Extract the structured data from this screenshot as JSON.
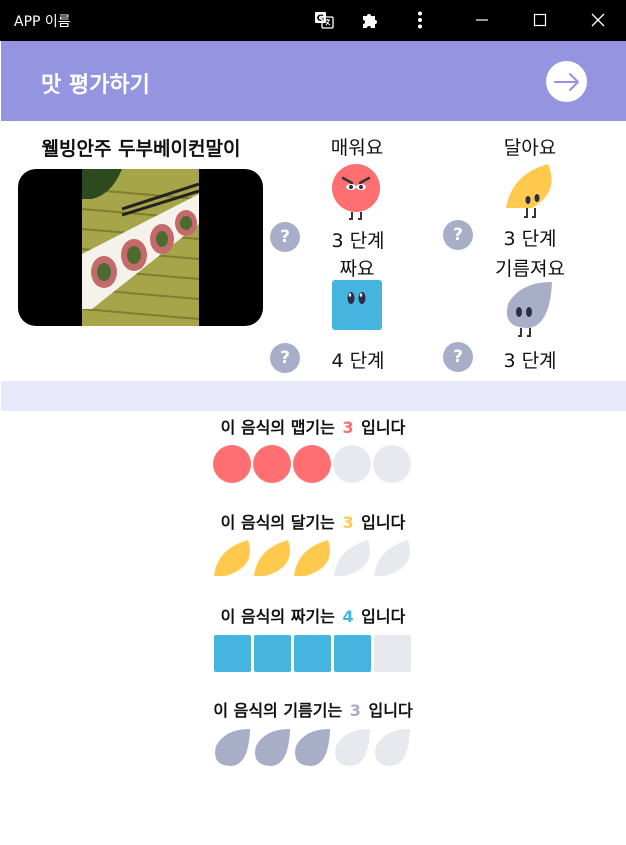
{
  "window": {
    "title": "APP 이름"
  },
  "header": {
    "title": "맛 평가하기"
  },
  "food": {
    "name": "웰빙안주 두부베이컨말이"
  },
  "attributes": [
    {
      "key": "spicy",
      "label": "매워요",
      "level_text": "3 단계",
      "color": "#ff6f71"
    },
    {
      "key": "sweet",
      "label": "달아요",
      "level_text": "3 단계",
      "color": "#ffc94d"
    },
    {
      "key": "salty",
      "label": "짜요",
      "level_text": "4 단계",
      "color": "#45b4de"
    },
    {
      "key": "greasy",
      "label": "기름져요",
      "level_text": "3 단계",
      "color": "#a9aec8"
    }
  ],
  "ratings": [
    {
      "prefix": "이 음식의 맵기는 ",
      "value_text": "3",
      "suffix": " 입니다",
      "value": 3,
      "max": 5,
      "shape": "circle",
      "color": "#ff6f71"
    },
    {
      "prefix": "이 음식의 달기는 ",
      "value_text": "3",
      "suffix": " 입니다",
      "value": 3,
      "max": 5,
      "shape": "half-moon",
      "color": "#ffc94d"
    },
    {
      "prefix": "이 음식의 짜기는 ",
      "value_text": "4",
      "suffix": " 입니다",
      "value": 4,
      "max": 5,
      "shape": "square",
      "color": "#45b4de"
    },
    {
      "prefix": "이 음식의 기름기는 ",
      "value_text": "3",
      "suffix": " 입니다",
      "value": 3,
      "max": 5,
      "shape": "drop",
      "color": "#a9aec8"
    }
  ],
  "colors": {
    "header_bg": "#9494e0",
    "divider_bg": "#e8e8fb",
    "empty_icon": "#e8e9ef",
    "help_bg": "#a9aec8"
  },
  "icons": {
    "translate": "translate-icon",
    "extensions": "puzzle-icon",
    "menu": "more-vertical-icon",
    "minimize": "minimize-icon",
    "maximize": "maximize-icon",
    "close": "close-icon",
    "next": "arrow-right-icon",
    "help": "?"
  }
}
